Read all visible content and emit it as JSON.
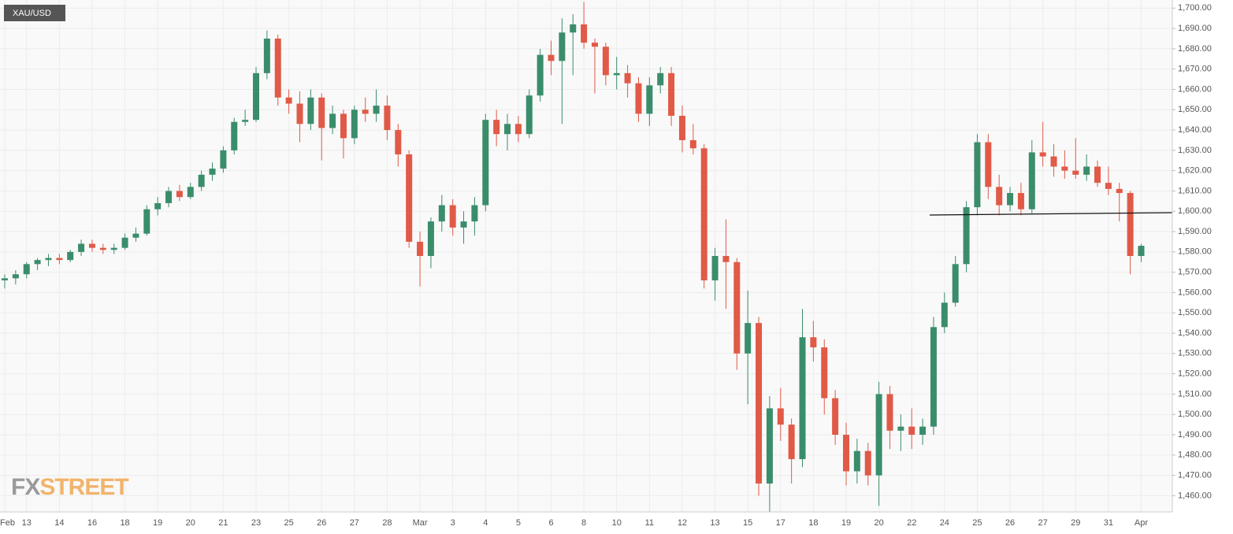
{
  "chart_data": {
    "type": "candlestick",
    "badge": "XAU/USD",
    "watermark": {
      "prefix": "FX",
      "suffix": "STREET"
    },
    "categories": [
      "Feb",
      null,
      "13",
      null,
      null,
      "14",
      null,
      null,
      "16",
      null,
      null,
      "18",
      null,
      null,
      "19",
      null,
      null,
      "20",
      null,
      null,
      "21",
      null,
      null,
      "23",
      null,
      null,
      "25",
      null,
      null,
      "26",
      null,
      null,
      "27",
      null,
      null,
      "28",
      null,
      null,
      "Mar",
      null,
      null,
      "3",
      null,
      null,
      "4",
      null,
      null,
      "5",
      null,
      null,
      "6",
      null,
      null,
      "8",
      null,
      null,
      "10",
      null,
      null,
      "11",
      null,
      null,
      "12",
      null,
      null,
      "13",
      null,
      null,
      "15",
      null,
      null,
      "17",
      null,
      null,
      "18",
      null,
      null,
      "19",
      null,
      null,
      "20",
      null,
      null,
      "22",
      null,
      null,
      "24",
      null,
      null,
      "25",
      null,
      null,
      "26",
      null,
      null,
      "27",
      null,
      null,
      "29",
      null,
      null,
      "31",
      null,
      null,
      "Apr"
    ],
    "open": [
      1566,
      1567,
      1569,
      1574,
      1576,
      1577,
      1576,
      1580,
      1584,
      1582,
      1581,
      1582,
      1587,
      1589,
      1601,
      1604,
      1610,
      1607,
      1612,
      1618,
      1621,
      1630,
      1644,
      1645,
      1668,
      1685,
      1656,
      1653,
      1643,
      1656,
      1641,
      1648,
      1636,
      1650,
      1648,
      1652,
      1640,
      1628,
      1585,
      1578,
      1595,
      1603,
      1592,
      1595,
      1603,
      1645,
      1638,
      1643,
      1638,
      1657,
      1677,
      1674,
      1688,
      1692,
      1683,
      1681,
      1667,
      1668,
      1663,
      1648,
      1662,
      1668,
      1647,
      1635,
      1631,
      1566,
      1578,
      1575,
      1530,
      1545,
      1466,
      1503,
      1495,
      1478,
      1538,
      1533,
      1508,
      1490,
      1472,
      1482,
      1470,
      1510,
      1492,
      1494,
      1490,
      1494,
      1543,
      1555,
      1574,
      1602,
      1634,
      1612,
      1603,
      1609,
      1601,
      1629,
      1627,
      1622,
      1620,
      1618,
      1622,
      1614,
      1611,
      1609,
      1578
    ],
    "high": [
      1569,
      1571,
      1575,
      1577,
      1579,
      1579,
      1581,
      1586,
      1586,
      1584,
      1584,
      1589,
      1592,
      1603,
      1607,
      1612,
      1613,
      1614,
      1620,
      1624,
      1632,
      1646,
      1650,
      1671,
      1689,
      1687,
      1660,
      1659,
      1660,
      1658,
      1652,
      1650,
      1652,
      1656,
      1660,
      1657,
      1643,
      1630,
      1590,
      1597,
      1608,
      1606,
      1600,
      1607,
      1648,
      1650,
      1648,
      1647,
      1660,
      1680,
      1684,
      1695,
      1697,
      1703,
      1685,
      1683,
      1676,
      1672,
      1666,
      1666,
      1671,
      1671,
      1652,
      1643,
      1633,
      1582,
      1596,
      1577,
      1561,
      1548,
      1509,
      1513,
      1498,
      1552,
      1546,
      1537,
      1512,
      1496,
      1488,
      1486,
      1516,
      1514,
      1500,
      1503,
      1498,
      1548,
      1560,
      1578,
      1605,
      1638,
      1638,
      1618,
      1612,
      1614,
      1635,
      1644,
      1633,
      1630,
      1636,
      1628,
      1625,
      1622,
      1614,
      1610,
      1584
    ],
    "low": [
      1562,
      1564,
      1567,
      1571,
      1573,
      1574,
      1575,
      1578,
      1580,
      1579,
      1579,
      1581,
      1585,
      1588,
      1598,
      1602,
      1605,
      1606,
      1610,
      1615,
      1619,
      1628,
      1642,
      1644,
      1665,
      1652,
      1648,
      1634,
      1640,
      1625,
      1638,
      1626,
      1633,
      1644,
      1644,
      1635,
      1622,
      1582,
      1563,
      1572,
      1590,
      1588,
      1584,
      1588,
      1600,
      1632,
      1630,
      1634,
      1636,
      1654,
      1667,
      1643,
      1667,
      1680,
      1658,
      1662,
      1660,
      1656,
      1644,
      1642,
      1658,
      1642,
      1629,
      1628,
      1562,
      1556,
      1552,
      1522,
      1505,
      1460,
      1452,
      1487,
      1466,
      1474,
      1526,
      1500,
      1485,
      1465,
      1466,
      1465,
      1455,
      1483,
      1482,
      1483,
      1485,
      1490,
      1540,
      1553,
      1570,
      1598,
      1606,
      1598,
      1600,
      1598,
      1599,
      1622,
      1617,
      1616,
      1616,
      1615,
      1612,
      1608,
      1595,
      1569,
      1575
    ],
    "close": [
      1567,
      1569,
      1574,
      1576,
      1577,
      1576,
      1580,
      1584,
      1582,
      1581,
      1582,
      1587,
      1589,
      1601,
      1604,
      1610,
      1607,
      1612,
      1618,
      1621,
      1630,
      1644,
      1645,
      1668,
      1685,
      1656,
      1653,
      1643,
      1656,
      1641,
      1648,
      1636,
      1650,
      1648,
      1652,
      1640,
      1628,
      1585,
      1578,
      1595,
      1603,
      1592,
      1595,
      1603,
      1645,
      1638,
      1643,
      1638,
      1657,
      1677,
      1674,
      1688,
      1692,
      1683,
      1681,
      1667,
      1668,
      1663,
      1648,
      1662,
      1668,
      1647,
      1635,
      1631,
      1566,
      1578,
      1575,
      1530,
      1545,
      1466,
      1503,
      1495,
      1478,
      1538,
      1533,
      1508,
      1490,
      1472,
      1482,
      1470,
      1510,
      1492,
      1494,
      1490,
      1494,
      1543,
      1555,
      1574,
      1602,
      1634,
      1612,
      1603,
      1609,
      1601,
      1629,
      1627,
      1622,
      1620,
      1618,
      1622,
      1614,
      1611,
      1609,
      1578,
      1583
    ],
    "up_color": "#3a8d6b",
    "down_color": "#e05a47",
    "ylim": [
      1452,
      1704
    ],
    "yticks": [
      {
        "value": 1460,
        "label": "1,460.00"
      },
      {
        "value": 1470,
        "label": "1,470.00"
      },
      {
        "value": 1480,
        "label": "1,480.00"
      },
      {
        "value": 1490,
        "label": "1,490.00"
      },
      {
        "value": 1500,
        "label": "1,500.00"
      },
      {
        "value": 1510,
        "label": "1,510.00"
      },
      {
        "value": 1520,
        "label": "1,520.00"
      },
      {
        "value": 1530,
        "label": "1,530.00"
      },
      {
        "value": 1540,
        "label": "1,540.00"
      },
      {
        "value": 1550,
        "label": "1,550.00"
      },
      {
        "value": 1560,
        "label": "1,560.00"
      },
      {
        "value": 1570,
        "label": "1,570.00"
      },
      {
        "value": 1580,
        "label": "1,580.00"
      },
      {
        "value": 1590,
        "label": "1,590.00"
      },
      {
        "value": 1600,
        "label": "1,600.00"
      },
      {
        "value": 1610,
        "label": "1,610.00"
      },
      {
        "value": 1620,
        "label": "1,620.00"
      },
      {
        "value": 1630,
        "label": "1,630.00"
      },
      {
        "value": 1640,
        "label": "1,640.00"
      },
      {
        "value": 1650,
        "label": "1,650.00"
      },
      {
        "value": 1660,
        "label": "1,660.00"
      },
      {
        "value": 1670,
        "label": "1,670.00"
      },
      {
        "value": 1680,
        "label": "1,680.00"
      },
      {
        "value": 1690,
        "label": "1,690.00"
      },
      {
        "value": 1700,
        "label": "1,700.00"
      }
    ],
    "grid": true
  }
}
